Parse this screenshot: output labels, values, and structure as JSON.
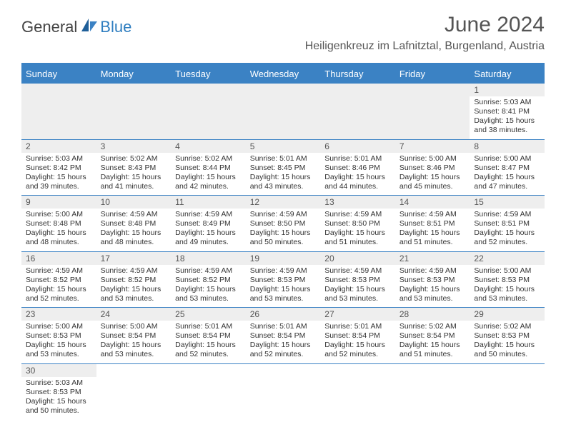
{
  "brand": {
    "part1": "General",
    "part2": "Blue"
  },
  "title": "June 2024",
  "location": "Heiligenkreuz im Lafnitztal, Burgenland, Austria",
  "colors": {
    "header_bg": "#3b82c4",
    "header_text": "#ffffff",
    "border": "#3b82c4",
    "daynum_bg": "#eeeeee",
    "text": "#333333",
    "title_text": "#555555"
  },
  "day_names": [
    "Sunday",
    "Monday",
    "Tuesday",
    "Wednesday",
    "Thursday",
    "Friday",
    "Saturday"
  ],
  "weeks": [
    [
      null,
      null,
      null,
      null,
      null,
      null,
      {
        "n": "1",
        "sr": "Sunrise: 5:03 AM",
        "ss": "Sunset: 8:41 PM",
        "d1": "Daylight: 15 hours",
        "d2": "and 38 minutes."
      }
    ],
    [
      {
        "n": "2",
        "sr": "Sunrise: 5:03 AM",
        "ss": "Sunset: 8:42 PM",
        "d1": "Daylight: 15 hours",
        "d2": "and 39 minutes."
      },
      {
        "n": "3",
        "sr": "Sunrise: 5:02 AM",
        "ss": "Sunset: 8:43 PM",
        "d1": "Daylight: 15 hours",
        "d2": "and 41 minutes."
      },
      {
        "n": "4",
        "sr": "Sunrise: 5:02 AM",
        "ss": "Sunset: 8:44 PM",
        "d1": "Daylight: 15 hours",
        "d2": "and 42 minutes."
      },
      {
        "n": "5",
        "sr": "Sunrise: 5:01 AM",
        "ss": "Sunset: 8:45 PM",
        "d1": "Daylight: 15 hours",
        "d2": "and 43 minutes."
      },
      {
        "n": "6",
        "sr": "Sunrise: 5:01 AM",
        "ss": "Sunset: 8:46 PM",
        "d1": "Daylight: 15 hours",
        "d2": "and 44 minutes."
      },
      {
        "n": "7",
        "sr": "Sunrise: 5:00 AM",
        "ss": "Sunset: 8:46 PM",
        "d1": "Daylight: 15 hours",
        "d2": "and 45 minutes."
      },
      {
        "n": "8",
        "sr": "Sunrise: 5:00 AM",
        "ss": "Sunset: 8:47 PM",
        "d1": "Daylight: 15 hours",
        "d2": "and 47 minutes."
      }
    ],
    [
      {
        "n": "9",
        "sr": "Sunrise: 5:00 AM",
        "ss": "Sunset: 8:48 PM",
        "d1": "Daylight: 15 hours",
        "d2": "and 48 minutes."
      },
      {
        "n": "10",
        "sr": "Sunrise: 4:59 AM",
        "ss": "Sunset: 8:48 PM",
        "d1": "Daylight: 15 hours",
        "d2": "and 48 minutes."
      },
      {
        "n": "11",
        "sr": "Sunrise: 4:59 AM",
        "ss": "Sunset: 8:49 PM",
        "d1": "Daylight: 15 hours",
        "d2": "and 49 minutes."
      },
      {
        "n": "12",
        "sr": "Sunrise: 4:59 AM",
        "ss": "Sunset: 8:50 PM",
        "d1": "Daylight: 15 hours",
        "d2": "and 50 minutes."
      },
      {
        "n": "13",
        "sr": "Sunrise: 4:59 AM",
        "ss": "Sunset: 8:50 PM",
        "d1": "Daylight: 15 hours",
        "d2": "and 51 minutes."
      },
      {
        "n": "14",
        "sr": "Sunrise: 4:59 AM",
        "ss": "Sunset: 8:51 PM",
        "d1": "Daylight: 15 hours",
        "d2": "and 51 minutes."
      },
      {
        "n": "15",
        "sr": "Sunrise: 4:59 AM",
        "ss": "Sunset: 8:51 PM",
        "d1": "Daylight: 15 hours",
        "d2": "and 52 minutes."
      }
    ],
    [
      {
        "n": "16",
        "sr": "Sunrise: 4:59 AM",
        "ss": "Sunset: 8:52 PM",
        "d1": "Daylight: 15 hours",
        "d2": "and 52 minutes."
      },
      {
        "n": "17",
        "sr": "Sunrise: 4:59 AM",
        "ss": "Sunset: 8:52 PM",
        "d1": "Daylight: 15 hours",
        "d2": "and 53 minutes."
      },
      {
        "n": "18",
        "sr": "Sunrise: 4:59 AM",
        "ss": "Sunset: 8:52 PM",
        "d1": "Daylight: 15 hours",
        "d2": "and 53 minutes."
      },
      {
        "n": "19",
        "sr": "Sunrise: 4:59 AM",
        "ss": "Sunset: 8:53 PM",
        "d1": "Daylight: 15 hours",
        "d2": "and 53 minutes."
      },
      {
        "n": "20",
        "sr": "Sunrise: 4:59 AM",
        "ss": "Sunset: 8:53 PM",
        "d1": "Daylight: 15 hours",
        "d2": "and 53 minutes."
      },
      {
        "n": "21",
        "sr": "Sunrise: 4:59 AM",
        "ss": "Sunset: 8:53 PM",
        "d1": "Daylight: 15 hours",
        "d2": "and 53 minutes."
      },
      {
        "n": "22",
        "sr": "Sunrise: 5:00 AM",
        "ss": "Sunset: 8:53 PM",
        "d1": "Daylight: 15 hours",
        "d2": "and 53 minutes."
      }
    ],
    [
      {
        "n": "23",
        "sr": "Sunrise: 5:00 AM",
        "ss": "Sunset: 8:53 PM",
        "d1": "Daylight: 15 hours",
        "d2": "and 53 minutes."
      },
      {
        "n": "24",
        "sr": "Sunrise: 5:00 AM",
        "ss": "Sunset: 8:54 PM",
        "d1": "Daylight: 15 hours",
        "d2": "and 53 minutes."
      },
      {
        "n": "25",
        "sr": "Sunrise: 5:01 AM",
        "ss": "Sunset: 8:54 PM",
        "d1": "Daylight: 15 hours",
        "d2": "and 52 minutes."
      },
      {
        "n": "26",
        "sr": "Sunrise: 5:01 AM",
        "ss": "Sunset: 8:54 PM",
        "d1": "Daylight: 15 hours",
        "d2": "and 52 minutes."
      },
      {
        "n": "27",
        "sr": "Sunrise: 5:01 AM",
        "ss": "Sunset: 8:54 PM",
        "d1": "Daylight: 15 hours",
        "d2": "and 52 minutes."
      },
      {
        "n": "28",
        "sr": "Sunrise: 5:02 AM",
        "ss": "Sunset: 8:54 PM",
        "d1": "Daylight: 15 hours",
        "d2": "and 51 minutes."
      },
      {
        "n": "29",
        "sr": "Sunrise: 5:02 AM",
        "ss": "Sunset: 8:53 PM",
        "d1": "Daylight: 15 hours",
        "d2": "and 50 minutes."
      }
    ],
    [
      {
        "n": "30",
        "sr": "Sunrise: 5:03 AM",
        "ss": "Sunset: 8:53 PM",
        "d1": "Daylight: 15 hours",
        "d2": "and 50 minutes."
      },
      null,
      null,
      null,
      null,
      null,
      null
    ]
  ]
}
